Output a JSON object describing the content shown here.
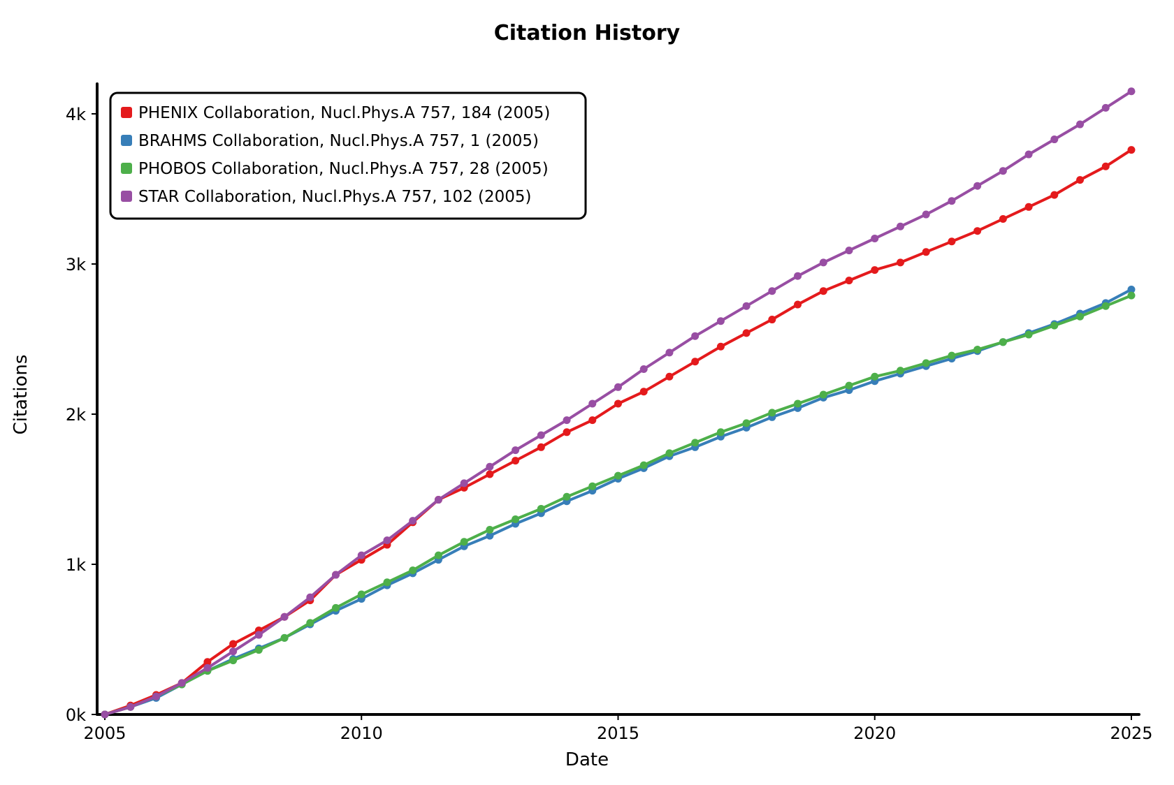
{
  "chart_data": {
    "type": "line",
    "title": "Citation History",
    "xlabel": "Date",
    "ylabel": "Citations",
    "xlim": [
      2004.85,
      2025.15
    ],
    "ylim": [
      0,
      4200
    ],
    "x_ticks": [
      2005,
      2010,
      2015,
      2020,
      2025
    ],
    "x_tick_labels": [
      "2005",
      "2010",
      "2015",
      "2020",
      "2025"
    ],
    "y_ticks": [
      0,
      1000,
      2000,
      3000,
      4000
    ],
    "y_tick_labels": [
      "0k",
      "1k",
      "2k",
      "3k",
      "4k"
    ],
    "grid": false,
    "legend_position": "top-left",
    "series": [
      {
        "name": "PHENIX Collaboration, Nucl.Phys.A 757, 184 (2005)",
        "color": "#e41a1c",
        "x": [
          2005.0,
          2005.5,
          2006.0,
          2006.5,
          2007.0,
          2007.5,
          2008.0,
          2008.5,
          2009.0,
          2009.5,
          2010.0,
          2010.5,
          2011.0,
          2011.5,
          2012.0,
          2012.5,
          2013.0,
          2013.5,
          2014.0,
          2014.5,
          2015.0,
          2015.5,
          2016.0,
          2016.5,
          2017.0,
          2017.5,
          2018.0,
          2018.5,
          2019.0,
          2019.5,
          2020.0,
          2020.5,
          2021.0,
          2021.5,
          2022.0,
          2022.5,
          2023.0,
          2023.5,
          2024.0,
          2024.5,
          2025.0
        ],
        "y": [
          0,
          60,
          130,
          210,
          350,
          470,
          560,
          650,
          760,
          930,
          1030,
          1130,
          1280,
          1430,
          1510,
          1600,
          1690,
          1780,
          1880,
          1960,
          2070,
          2150,
          2250,
          2350,
          2450,
          2540,
          2630,
          2730,
          2820,
          2890,
          2960,
          3010,
          3080,
          3150,
          3220,
          3300,
          3380,
          3460,
          3560,
          3650,
          3760
        ]
      },
      {
        "name": "BRAHMS Collaboration, Nucl.Phys.A 757, 1 (2005)",
        "color": "#377eb8",
        "x": [
          2005.0,
          2005.5,
          2006.0,
          2006.5,
          2007.0,
          2007.5,
          2008.0,
          2008.5,
          2009.0,
          2009.5,
          2010.0,
          2010.5,
          2011.0,
          2011.5,
          2012.0,
          2012.5,
          2013.0,
          2013.5,
          2014.0,
          2014.5,
          2015.0,
          2015.5,
          2016.0,
          2016.5,
          2017.0,
          2017.5,
          2018.0,
          2018.5,
          2019.0,
          2019.5,
          2020.0,
          2020.5,
          2021.0,
          2021.5,
          2022.0,
          2022.5,
          2023.0,
          2023.5,
          2024.0,
          2024.5,
          2025.0
        ],
        "y": [
          0,
          50,
          110,
          200,
          290,
          370,
          440,
          510,
          600,
          690,
          770,
          860,
          940,
          1030,
          1120,
          1190,
          1270,
          1340,
          1420,
          1490,
          1570,
          1640,
          1720,
          1780,
          1850,
          1910,
          1980,
          2040,
          2110,
          2160,
          2220,
          2270,
          2320,
          2370,
          2420,
          2480,
          2540,
          2600,
          2670,
          2740,
          2830
        ]
      },
      {
        "name": "PHOBOS Collaboration, Nucl.Phys.A 757, 28 (2005)",
        "color": "#4daf4a",
        "x": [
          2005.0,
          2005.5,
          2006.0,
          2006.5,
          2007.0,
          2007.5,
          2008.0,
          2008.5,
          2009.0,
          2009.5,
          2010.0,
          2010.5,
          2011.0,
          2011.5,
          2012.0,
          2012.5,
          2013.0,
          2013.5,
          2014.0,
          2014.5,
          2015.0,
          2015.5,
          2016.0,
          2016.5,
          2017.0,
          2017.5,
          2018.0,
          2018.5,
          2019.0,
          2019.5,
          2020.0,
          2020.5,
          2021.0,
          2021.5,
          2022.0,
          2022.5,
          2023.0,
          2023.5,
          2024.0,
          2024.5,
          2025.0
        ],
        "y": [
          0,
          50,
          120,
          200,
          290,
          360,
          430,
          510,
          610,
          710,
          800,
          880,
          960,
          1060,
          1150,
          1230,
          1300,
          1370,
          1450,
          1520,
          1590,
          1660,
          1740,
          1810,
          1880,
          1940,
          2010,
          2070,
          2130,
          2190,
          2250,
          2290,
          2340,
          2390,
          2430,
          2480,
          2530,
          2590,
          2650,
          2720,
          2790
        ]
      },
      {
        "name": "STAR Collaboration, Nucl.Phys.A 757, 102 (2005)",
        "color": "#984ea3",
        "x": [
          2005.0,
          2005.5,
          2006.0,
          2006.5,
          2007.0,
          2007.5,
          2008.0,
          2008.5,
          2009.0,
          2009.5,
          2010.0,
          2010.5,
          2011.0,
          2011.5,
          2012.0,
          2012.5,
          2013.0,
          2013.5,
          2014.0,
          2014.5,
          2015.0,
          2015.5,
          2016.0,
          2016.5,
          2017.0,
          2017.5,
          2018.0,
          2018.5,
          2019.0,
          2019.5,
          2020.0,
          2020.5,
          2021.0,
          2021.5,
          2022.0,
          2022.5,
          2023.0,
          2023.5,
          2024.0,
          2024.5,
          2025.0
        ],
        "y": [
          0,
          50,
          120,
          210,
          310,
          420,
          530,
          650,
          780,
          930,
          1060,
          1160,
          1290,
          1430,
          1540,
          1650,
          1760,
          1860,
          1960,
          2070,
          2180,
          2300,
          2410,
          2520,
          2620,
          2720,
          2820,
          2920,
          3010,
          3090,
          3170,
          3250,
          3330,
          3420,
          3520,
          3620,
          3730,
          3830,
          3930,
          4040,
          4150
        ]
      }
    ]
  }
}
